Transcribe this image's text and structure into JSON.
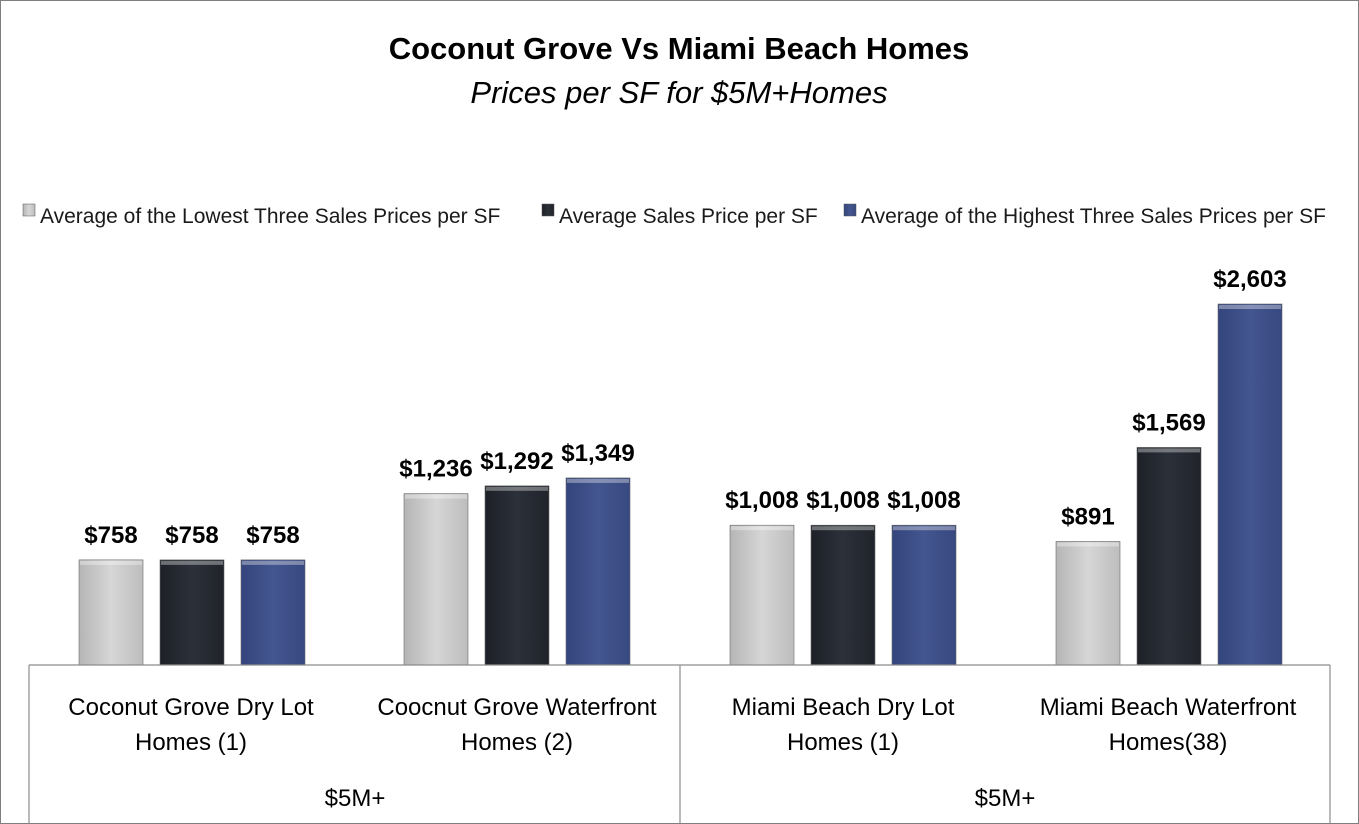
{
  "chart_data": {
    "type": "bar",
    "title": "Coconut Grove Vs Miami Beach Homes",
    "subtitle": "Prices per SF for $5M+Homes",
    "categories": [
      [
        "Coconut Grove Dry Lot",
        "Homes (1)"
      ],
      [
        "Coocnut Grove Waterfront",
        "Homes (2)"
      ],
      [
        "Miami Beach Dry Lot",
        "Homes (1)"
      ],
      [
        "Miami Beach Waterfront",
        "Homes(38)"
      ]
    ],
    "groups": [
      {
        "label": "$5M+",
        "categories": [
          0,
          1
        ]
      },
      {
        "label": "$5M+",
        "categories": [
          2,
          3
        ]
      }
    ],
    "series": [
      {
        "name": "Average of the Lowest Three Sales Prices per SF",
        "color": "#c8c8c8",
        "values": [
          758,
          1236,
          1008,
          891
        ],
        "labels": [
          "$758",
          "$1,236",
          "$1,008",
          "$891"
        ]
      },
      {
        "name": "Average Sales Price per SF",
        "color": "#262a33",
        "values": [
          758,
          1292,
          1008,
          1569
        ],
        "labels": [
          "$758",
          "$1,292",
          "$1,008",
          "$1,569"
        ]
      },
      {
        "name": "Average of the Highest Three Sales Prices per SF",
        "color": "#3f508e",
        "values": [
          758,
          1349,
          1008,
          2603
        ],
        "labels": [
          "$758",
          "$1,349",
          "$1,008",
          "$2,603"
        ]
      }
    ],
    "ylim": [
      0,
      2800
    ],
    "legend": "top",
    "grid": false
  }
}
